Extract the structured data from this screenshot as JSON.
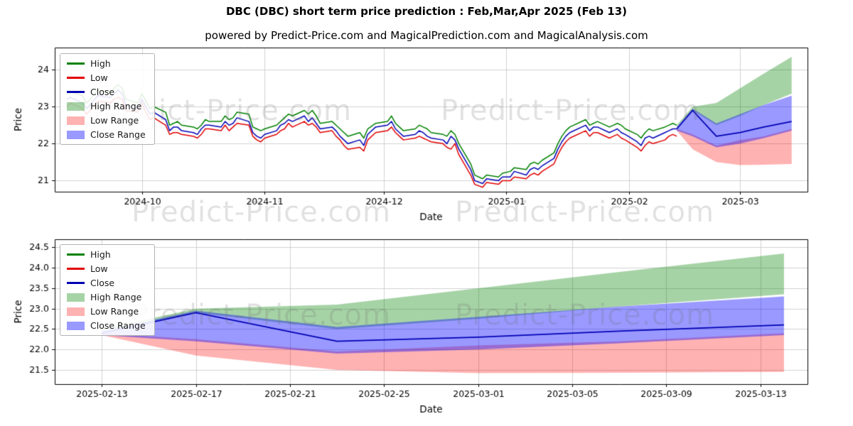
{
  "header": {
    "title": "DBC (DBC) short term price prediction : Feb,Mar,Apr 2025 (Feb 13)",
    "subtitle": "powered by Predict-Price.com and MagicalPrediction.com and MagicalAnalysis.com"
  },
  "watermark": {
    "text": "Predict-Price.com"
  },
  "colors": {
    "high_line": "#008000",
    "low_line": "#e00000",
    "close_line": "#0000b4",
    "high_range_fill": "rgba(0,128,0,0.35)",
    "low_range_fill": "rgba(255,0,0,0.30)",
    "close_range_fill": "rgba(0,0,255,0.40)",
    "grid": "#d0d0d0",
    "axis": "#000000"
  },
  "legend": {
    "entries": [
      {
        "label": "High",
        "swatch": "line",
        "color_key": "high_line"
      },
      {
        "label": "Low",
        "swatch": "line",
        "color_key": "low_line"
      },
      {
        "label": "Close",
        "swatch": "line",
        "color_key": "close_line"
      },
      {
        "label": "High Range",
        "swatch": "patch",
        "color_key": "high_range_fill"
      },
      {
        "label": "Low Range",
        "swatch": "patch",
        "color_key": "low_range_fill"
      },
      {
        "label": "Close Range",
        "swatch": "patch",
        "color_key": "close_range_fill"
      }
    ],
    "position": "upper left"
  },
  "chart_data": [
    {
      "type": "line",
      "name": "history-with-prediction",
      "xlabel": "Date",
      "ylabel": "Price",
      "grid": true,
      "xlim": [
        "2024-09-09",
        "2025-03-18"
      ],
      "ylim": [
        20.7,
        24.6
      ],
      "x_ticks": [
        {
          "label": "2024-10",
          "date": "2024-10-01"
        },
        {
          "label": "2024-11",
          "date": "2024-11-01"
        },
        {
          "label": "2024-12",
          "date": "2024-12-01"
        },
        {
          "label": "2025-01",
          "date": "2025-01-01"
        },
        {
          "label": "2025-02",
          "date": "2025-02-01"
        },
        {
          "label": "2025-03",
          "date": "2025-03-01"
        }
      ],
      "y_ticks": [
        {
          "label": "21",
          "value": 21
        },
        {
          "label": "22",
          "value": 22
        },
        {
          "label": "23",
          "value": 23
        },
        {
          "label": "24",
          "value": 24
        }
      ],
      "historical": {
        "columns": [
          "date",
          "high",
          "low",
          "close"
        ],
        "ohlc": [
          [
            "2024-09-12",
            23.35,
            23.0,
            23.2
          ],
          [
            "2024-09-13",
            23.4,
            23.1,
            23.25
          ],
          [
            "2024-09-16",
            23.3,
            22.95,
            23.1
          ],
          [
            "2024-09-17",
            23.1,
            22.8,
            22.95
          ],
          [
            "2024-09-18",
            23.2,
            22.9,
            23.05
          ],
          [
            "2024-09-19",
            23.35,
            23.05,
            23.2
          ],
          [
            "2024-09-20",
            23.45,
            23.15,
            23.3
          ],
          [
            "2024-09-23",
            23.4,
            23.1,
            23.25
          ],
          [
            "2024-09-24",
            23.5,
            23.2,
            23.35
          ],
          [
            "2024-09-25",
            23.6,
            23.25,
            23.45
          ],
          [
            "2024-09-26",
            23.5,
            23.2,
            23.35
          ],
          [
            "2024-09-27",
            23.2,
            22.9,
            23.05
          ],
          [
            "2024-09-30",
            23.1,
            22.85,
            22.95
          ],
          [
            "2024-10-01",
            23.35,
            23.1,
            23.2
          ],
          [
            "2024-10-02",
            23.15,
            22.85,
            23.0
          ],
          [
            "2024-10-03",
            22.95,
            22.65,
            22.8
          ],
          [
            "2024-10-04",
            23.0,
            22.7,
            22.85
          ],
          [
            "2024-10-07",
            22.85,
            22.5,
            22.65
          ],
          [
            "2024-10-08",
            22.5,
            22.25,
            22.35
          ],
          [
            "2024-10-09",
            22.55,
            22.3,
            22.45
          ],
          [
            "2024-10-10",
            22.6,
            22.3,
            22.45
          ],
          [
            "2024-10-11",
            22.5,
            22.25,
            22.35
          ],
          [
            "2024-10-14",
            22.45,
            22.2,
            22.3
          ],
          [
            "2024-10-15",
            22.4,
            22.15,
            22.25
          ],
          [
            "2024-10-16",
            22.5,
            22.25,
            22.4
          ],
          [
            "2024-10-17",
            22.65,
            22.4,
            22.5
          ],
          [
            "2024-10-18",
            22.6,
            22.4,
            22.5
          ],
          [
            "2024-10-21",
            22.6,
            22.35,
            22.45
          ],
          [
            "2024-10-22",
            22.75,
            22.5,
            22.6
          ],
          [
            "2024-10-23",
            22.65,
            22.35,
            22.5
          ],
          [
            "2024-10-24",
            22.7,
            22.45,
            22.55
          ],
          [
            "2024-10-25",
            22.85,
            22.55,
            22.7
          ],
          [
            "2024-10-28",
            22.8,
            22.5,
            22.6
          ],
          [
            "2024-10-29",
            22.45,
            22.2,
            22.3
          ],
          [
            "2024-10-30",
            22.4,
            22.1,
            22.2
          ],
          [
            "2024-10-31",
            22.35,
            22.05,
            22.15
          ],
          [
            "2024-11-01",
            22.4,
            22.15,
            22.25
          ],
          [
            "2024-11-04",
            22.5,
            22.25,
            22.35
          ],
          [
            "2024-11-05",
            22.6,
            22.35,
            22.5
          ],
          [
            "2024-11-06",
            22.7,
            22.4,
            22.55
          ],
          [
            "2024-11-07",
            22.8,
            22.55,
            22.65
          ],
          [
            "2024-11-08",
            22.75,
            22.45,
            22.6
          ],
          [
            "2024-11-11",
            22.9,
            22.6,
            22.75
          ],
          [
            "2024-11-12",
            22.8,
            22.5,
            22.6
          ],
          [
            "2024-11-13",
            22.9,
            22.55,
            22.7
          ],
          [
            "2024-11-14",
            22.75,
            22.45,
            22.55
          ],
          [
            "2024-11-15",
            22.55,
            22.3,
            22.4
          ],
          [
            "2024-11-18",
            22.6,
            22.35,
            22.45
          ],
          [
            "2024-11-19",
            22.5,
            22.2,
            22.35
          ],
          [
            "2024-11-20",
            22.4,
            22.1,
            22.2
          ],
          [
            "2024-11-21",
            22.3,
            21.95,
            22.1
          ],
          [
            "2024-11-22",
            22.2,
            21.85,
            22.0
          ],
          [
            "2024-11-25",
            22.3,
            21.9,
            22.1
          ],
          [
            "2024-11-26",
            22.15,
            21.8,
            21.95
          ],
          [
            "2024-11-27",
            22.4,
            22.1,
            22.25
          ],
          [
            "2024-11-29",
            22.55,
            22.3,
            22.45
          ],
          [
            "2024-12-02",
            22.6,
            22.35,
            22.5
          ],
          [
            "2024-12-03",
            22.75,
            22.45,
            22.6
          ],
          [
            "2024-12-04",
            22.55,
            22.3,
            22.4
          ],
          [
            "2024-12-05",
            22.45,
            22.2,
            22.3
          ],
          [
            "2024-12-06",
            22.35,
            22.1,
            22.2
          ],
          [
            "2024-12-09",
            22.4,
            22.15,
            22.25
          ],
          [
            "2024-12-10",
            22.5,
            22.2,
            22.35
          ],
          [
            "2024-12-11",
            22.45,
            22.15,
            22.3
          ],
          [
            "2024-12-12",
            22.4,
            22.1,
            22.2
          ],
          [
            "2024-12-13",
            22.3,
            22.05,
            22.15
          ],
          [
            "2024-12-16",
            22.25,
            22.0,
            22.1
          ],
          [
            "2024-12-17",
            22.2,
            21.9,
            22.0
          ],
          [
            "2024-12-18",
            22.35,
            21.85,
            22.2
          ],
          [
            "2024-12-19",
            22.25,
            22.0,
            22.1
          ],
          [
            "2024-12-20",
            22.0,
            21.7,
            21.85
          ],
          [
            "2024-12-23",
            21.45,
            21.15,
            21.3
          ],
          [
            "2024-12-24",
            21.15,
            20.9,
            21.0
          ],
          [
            "2024-12-26",
            21.05,
            20.82,
            20.92
          ],
          [
            "2024-12-27",
            21.15,
            20.95,
            21.05
          ],
          [
            "2024-12-30",
            21.1,
            20.9,
            21.0
          ],
          [
            "2024-12-31",
            21.2,
            21.0,
            21.1
          ],
          [
            "2025-01-02",
            21.25,
            21.0,
            21.1
          ],
          [
            "2025-01-03",
            21.35,
            21.1,
            21.25
          ],
          [
            "2025-01-06",
            21.3,
            21.05,
            21.15
          ],
          [
            "2025-01-07",
            21.45,
            21.15,
            21.3
          ],
          [
            "2025-01-08",
            21.5,
            21.2,
            21.35
          ],
          [
            "2025-01-09",
            21.45,
            21.15,
            21.3
          ],
          [
            "2025-01-10",
            21.55,
            21.25,
            21.4
          ],
          [
            "2025-01-13",
            21.75,
            21.45,
            21.6
          ],
          [
            "2025-01-14",
            22.0,
            21.7,
            21.85
          ],
          [
            "2025-01-15",
            22.2,
            21.9,
            22.05
          ],
          [
            "2025-01-16",
            22.35,
            22.05,
            22.2
          ],
          [
            "2025-01-17",
            22.45,
            22.15,
            22.3
          ],
          [
            "2025-01-21",
            22.65,
            22.35,
            22.5
          ],
          [
            "2025-01-22",
            22.5,
            22.2,
            22.35
          ],
          [
            "2025-01-23",
            22.55,
            22.3,
            22.45
          ],
          [
            "2025-01-24",
            22.6,
            22.3,
            22.45
          ],
          [
            "2025-01-27",
            22.45,
            22.15,
            22.3
          ],
          [
            "2025-01-28",
            22.5,
            22.2,
            22.35
          ],
          [
            "2025-01-29",
            22.55,
            22.25,
            22.4
          ],
          [
            "2025-01-30",
            22.5,
            22.15,
            22.3
          ],
          [
            "2025-01-31",
            22.4,
            22.1,
            22.25
          ],
          [
            "2025-02-03",
            22.25,
            21.9,
            22.05
          ],
          [
            "2025-02-04",
            22.15,
            21.8,
            21.95
          ],
          [
            "2025-02-05",
            22.3,
            21.95,
            22.15
          ],
          [
            "2025-02-06",
            22.4,
            22.05,
            22.2
          ],
          [
            "2025-02-07",
            22.35,
            22.0,
            22.15
          ],
          [
            "2025-02-10",
            22.45,
            22.1,
            22.3
          ],
          [
            "2025-02-11",
            22.5,
            22.2,
            22.35
          ],
          [
            "2025-02-12",
            22.55,
            22.25,
            22.4
          ],
          [
            "2025-02-13",
            22.5,
            22.2,
            22.4
          ]
        ]
      },
      "prediction": {
        "dates": [
          "2025-02-13",
          "2025-02-17",
          "2025-02-23",
          "2025-03-01",
          "2025-03-07",
          "2025-03-14"
        ],
        "close": [
          22.4,
          22.9,
          22.2,
          22.3,
          22.45,
          22.6
        ],
        "high_range": {
          "top": [
            22.5,
            23.0,
            23.1,
            23.5,
            23.9,
            24.35
          ],
          "bottom": [
            22.45,
            22.9,
            22.5,
            22.75,
            23.05,
            23.35
          ]
        },
        "close_range": {
          "top": [
            22.45,
            22.95,
            22.55,
            22.8,
            23.05,
            23.3
          ],
          "bottom": [
            22.35,
            22.2,
            21.9,
            22.0,
            22.15,
            22.35
          ]
        },
        "low_range": {
          "top": [
            22.4,
            22.25,
            21.95,
            22.1,
            22.2,
            22.4
          ],
          "bottom": [
            22.35,
            21.85,
            21.5,
            21.42,
            21.43,
            21.45
          ]
        }
      }
    },
    {
      "type": "line",
      "name": "prediction-zoom",
      "xlabel": "Date",
      "ylabel": "Price",
      "grid": true,
      "xlim": [
        "2025-02-11",
        "2025-03-15"
      ],
      "ylim": [
        21.15,
        24.7
      ],
      "x_ticks": [
        {
          "label": "2025-02-13",
          "date": "2025-02-13"
        },
        {
          "label": "2025-02-17",
          "date": "2025-02-17"
        },
        {
          "label": "2025-02-21",
          "date": "2025-02-21"
        },
        {
          "label": "2025-02-25",
          "date": "2025-02-25"
        },
        {
          "label": "2025-03-01",
          "date": "2025-03-01"
        },
        {
          "label": "2025-03-05",
          "date": "2025-03-05"
        },
        {
          "label": "2025-03-09",
          "date": "2025-03-09"
        },
        {
          "label": "2025-03-13",
          "date": "2025-03-13"
        }
      ],
      "y_ticks": [
        {
          "label": "21.5",
          "value": 21.5
        },
        {
          "label": "22.0",
          "value": 22.0
        },
        {
          "label": "22.5",
          "value": 22.5
        },
        {
          "label": "23.0",
          "value": 23.0
        },
        {
          "label": "23.5",
          "value": 23.5
        },
        {
          "label": "24.0",
          "value": 24.0
        },
        {
          "label": "24.5",
          "value": 24.5
        }
      ],
      "prediction": {
        "dates": [
          "2025-02-13",
          "2025-02-17",
          "2025-02-23",
          "2025-03-01",
          "2025-03-07",
          "2025-03-14"
        ],
        "close": [
          22.4,
          22.9,
          22.2,
          22.3,
          22.45,
          22.6
        ],
        "high_range": {
          "top": [
            22.5,
            23.0,
            23.1,
            23.5,
            23.9,
            24.35
          ],
          "bottom": [
            22.45,
            22.9,
            22.5,
            22.75,
            23.05,
            23.35
          ]
        },
        "close_range": {
          "top": [
            22.45,
            22.95,
            22.55,
            22.8,
            23.05,
            23.3
          ],
          "bottom": [
            22.35,
            22.2,
            21.9,
            22.0,
            22.15,
            22.35
          ]
        },
        "low_range": {
          "top": [
            22.4,
            22.25,
            21.95,
            22.1,
            22.2,
            22.4
          ],
          "bottom": [
            22.35,
            21.85,
            21.5,
            21.42,
            21.43,
            21.45
          ]
        }
      }
    }
  ]
}
